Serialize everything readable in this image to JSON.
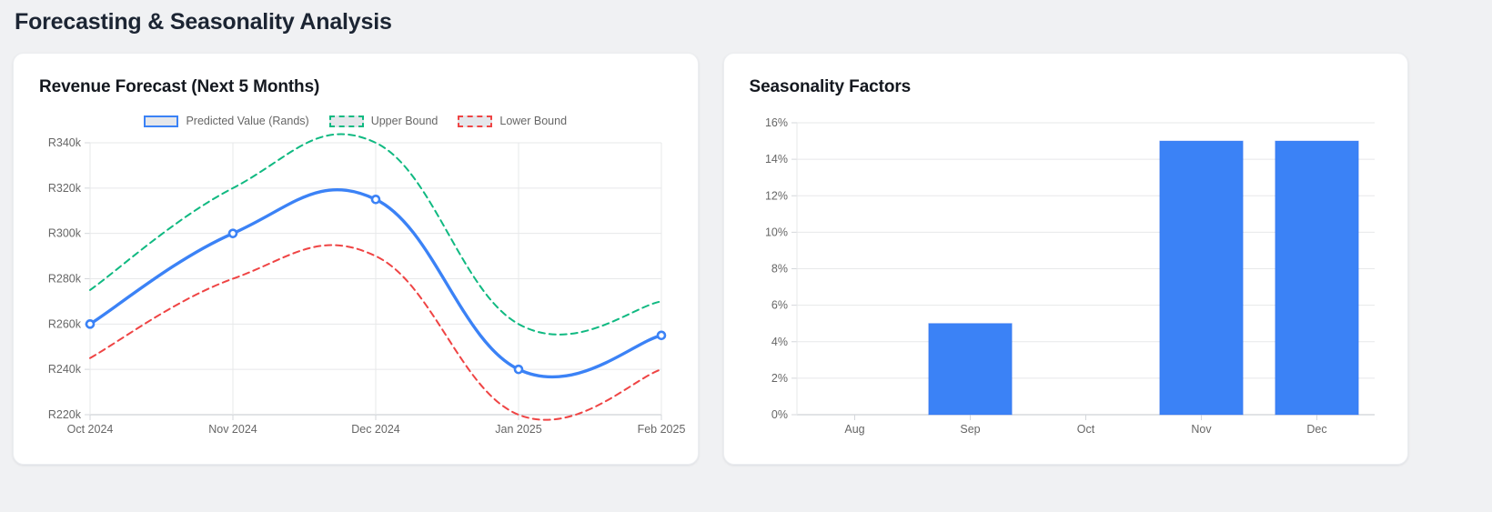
{
  "page": {
    "title": "Forecasting & Seasonality Analysis"
  },
  "colors": {
    "page_background": "#f0f1f3",
    "card_background": "#ffffff",
    "title_text": "#1c2533",
    "axis_text": "#666666",
    "gridline": "#e7e8ea",
    "axis_border": "#c3c7cd",
    "predicted_blue": "#3b82f6",
    "upper_green": "#10b981",
    "lower_red": "#ef4444",
    "legend_swatch_fill": "#e5e7eb"
  },
  "forecast_card": {
    "title": "Revenue Forecast (Next 5 Months)",
    "legend": [
      {
        "label": "Predicted Value (Rands)",
        "color": "#3b82f6",
        "dashed": false
      },
      {
        "label": "Upper Bound",
        "color": "#10b981",
        "dashed": true
      },
      {
        "label": "Lower Bound",
        "color": "#ef4444",
        "dashed": true
      }
    ]
  },
  "seasonality_card": {
    "title": "Seasonality Factors"
  },
  "chart_data": [
    {
      "type": "line",
      "title": "Revenue Forecast (Next 5 Months)",
      "categories": [
        "Oct 2024",
        "Nov 2024",
        "Dec 2024",
        "Jan 2025",
        "Feb 2025"
      ],
      "series": [
        {
          "name": "Predicted Value (Rands)",
          "values": [
            260000,
            300000,
            315000,
            240000,
            255000
          ],
          "color": "#3b82f6",
          "style": "solid",
          "points": true
        },
        {
          "name": "Upper Bound",
          "values": [
            275000,
            320000,
            340000,
            260000,
            270000
          ],
          "color": "#10b981",
          "style": "dashed",
          "points": false
        },
        {
          "name": "Lower Bound",
          "values": [
            245000,
            280000,
            290000,
            220000,
            240000
          ],
          "color": "#ef4444",
          "style": "dashed",
          "points": false
        }
      ],
      "ylim": [
        220000,
        340000
      ],
      "ytick_step": 20000,
      "yticks": [
        "R220k",
        "R240k",
        "R260k",
        "R280k",
        "R300k",
        "R320k",
        "R340k"
      ],
      "grid": {
        "x": true,
        "y": true
      },
      "legend_position": "top",
      "curve": "smooth"
    },
    {
      "type": "bar",
      "title": "Seasonality Factors",
      "categories": [
        "Aug",
        "Sep",
        "Oct",
        "Nov",
        "Dec"
      ],
      "values": [
        0,
        5,
        0,
        15,
        15
      ],
      "ylim": [
        0,
        16
      ],
      "ytick_step": 2,
      "yticks": [
        "0%",
        "2%",
        "4%",
        "6%",
        "8%",
        "10%",
        "12%",
        "14%",
        "16%"
      ],
      "bar_color": "#3b82f6",
      "grid": {
        "x": false,
        "y": true
      },
      "legend_position": "none"
    }
  ]
}
